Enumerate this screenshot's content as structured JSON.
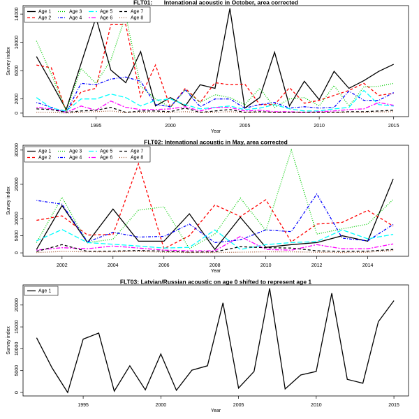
{
  "chart_data": [
    {
      "type": "line",
      "title": "FLT01:       Intenational acoustic in October, area corrected",
      "x_label": "Year",
      "y_label": "Survey index",
      "x": [
        1991,
        1992,
        1993,
        1994,
        1995,
        1996,
        1997,
        1998,
        1999,
        2000,
        2001,
        2002,
        2003,
        2004,
        2005,
        2006,
        2007,
        2008,
        2009,
        2010,
        2011,
        2012,
        2013,
        2014,
        2015
      ],
      "xlim": [
        1990.1,
        2016
      ],
      "xticks": [
        1995,
        2000,
        2005,
        2010,
        2015
      ],
      "ylim": [
        -500,
        15200
      ],
      "yticks": [
        0,
        2000,
        6000,
        10000,
        14000
      ],
      "legend": "topleft",
      "series": [
        {
          "name": "Age 1",
          "color": "#000000",
          "linestyle": "solid",
          "values": [
            8000,
            4300,
            500,
            7000,
            13500,
            6100,
            4300,
            8700,
            1000,
            2200,
            1000,
            4000,
            3500,
            14800,
            700,
            2200,
            8600,
            1000,
            4500,
            1900,
            5900,
            3500,
            4600,
            5900,
            6900
          ]
        },
        {
          "name": "Age 2",
          "color": "#ff0000",
          "linestyle": "dashed",
          "values": [
            6800,
            6400,
            200,
            3000,
            3500,
            12500,
            12500,
            2300,
            6800,
            800,
            3500,
            1500,
            4300,
            4000,
            4100,
            1200,
            1200,
            3600,
            1400,
            1800,
            2500,
            3200,
            4200,
            2500,
            2800
          ]
        },
        {
          "name": "Age 3",
          "color": "#00cd00",
          "linestyle": "dotted",
          "values": [
            10200,
            5500,
            300,
            6300,
            4200,
            7500,
            13800,
            3800,
            2000,
            800,
            3300,
            1500,
            2600,
            2200,
            1200,
            3500,
            800,
            2000,
            2200,
            1000,
            3900,
            1000,
            3700,
            3800,
            4200
          ]
        },
        {
          "name": "Age 4",
          "color": "#0000ff",
          "linestyle": "dashdot",
          "values": [
            1500,
            800,
            100,
            4200,
            4000,
            4800,
            5100,
            4500,
            1200,
            900,
            3300,
            900,
            2000,
            2000,
            700,
            1200,
            1500,
            700,
            900,
            700,
            800,
            3100,
            1800,
            1800,
            2900
          ]
        },
        {
          "name": "Age 5",
          "color": "#00ffff",
          "linestyle": "longdash",
          "values": [
            2200,
            700,
            300,
            2000,
            2000,
            2700,
            2200,
            1000,
            1800,
            2000,
            1200,
            600,
            800,
            1000,
            500,
            700,
            1200,
            600,
            300,
            300,
            600,
            800,
            3200,
            1200,
            1000
          ]
        },
        {
          "name": "Age 6",
          "color": "#ff00ff",
          "linestyle": "twodash",
          "values": [
            800,
            600,
            100,
            1000,
            400,
            1700,
            800,
            500,
            500,
            600,
            900,
            300,
            800,
            800,
            300,
            400,
            200,
            200,
            100,
            200,
            300,
            500,
            600,
            1500,
            1100
          ]
        },
        {
          "name": "Age 7",
          "color": "#000000",
          "linestyle": "dashed",
          "values": [
            600,
            500,
            100,
            300,
            400,
            800,
            100,
            300,
            300,
            200,
            700,
            100,
            300,
            500,
            100,
            200,
            100,
            100,
            100,
            100,
            100,
            200,
            200,
            300,
            400
          ]
        },
        {
          "name": "Age 8",
          "color": "#a0522d",
          "linestyle": "dotted",
          "values": [
            100,
            100,
            0,
            100,
            200,
            300,
            50,
            100,
            100,
            100,
            200,
            50,
            100,
            200,
            50,
            100,
            50,
            50,
            50,
            50,
            50,
            100,
            100,
            150,
            200
          ]
        }
      ]
    },
    {
      "type": "line",
      "title": "FLT02: Intenational acoustic in May, area corrected",
      "x_label": "Year",
      "y_label": "Survey index",
      "x": [
        2001,
        2002,
        2003,
        2004,
        2005,
        2006,
        2007,
        2008,
        2009,
        2010,
        2011,
        2012,
        2013,
        2014,
        2015
      ],
      "xlim": [
        2000.47,
        2015.6
      ],
      "xticks": [
        2002,
        2004,
        2006,
        2008,
        2010,
        2012,
        2014
      ],
      "ylim": [
        -1000,
        31400
      ],
      "yticks": [
        0,
        5000,
        10000,
        20000,
        30000
      ],
      "legend": "topleft",
      "series": [
        {
          "name": "Age 1",
          "color": "#000000",
          "linestyle": "solid",
          "values": [
            1000,
            13800,
            3000,
            12800,
            3400,
            3400,
            11400,
            1000,
            10400,
            1600,
            2400,
            3000,
            5000,
            3400,
            21600
          ]
        },
        {
          "name": "Age 2",
          "color": "#ff0000",
          "linestyle": "dashed",
          "values": [
            9500,
            10800,
            5200,
            5400,
            26000,
            1200,
            5000,
            14000,
            10600,
            15500,
            3200,
            8400,
            8900,
            12400,
            7800
          ]
        },
        {
          "name": "Age 3",
          "color": "#00cd00",
          "linestyle": "dotted",
          "values": [
            3000,
            16200,
            3000,
            4000,
            12500,
            13400,
            1200,
            5500,
            16000,
            6500,
            30000,
            5500,
            7000,
            8400,
            15600
          ]
        },
        {
          "name": "Age 4",
          "color": "#0000ff",
          "linestyle": "dashdot",
          "values": [
            15300,
            14200,
            3200,
            6000,
            4600,
            4800,
            8400,
            3000,
            3800,
            6700,
            6200,
            17200,
            4300,
            3500,
            8300
          ]
        },
        {
          "name": "Age 5",
          "color": "#00ffff",
          "linestyle": "longdash",
          "values": [
            3500,
            6800,
            3000,
            2500,
            2000,
            1400,
            1600,
            6700,
            1000,
            2400,
            3000,
            3300,
            6700,
            4100,
            5400
          ]
        },
        {
          "name": "Age 6",
          "color": "#ff00ff",
          "linestyle": "twodash",
          "values": [
            800,
            1500,
            1200,
            2000,
            1400,
            800,
            600,
            600,
            4800,
            1000,
            800,
            2400,
            1200,
            1200,
            2600
          ]
        },
        {
          "name": "Age 7",
          "color": "#000000",
          "linestyle": "dashed",
          "values": [
            400,
            2400,
            400,
            500,
            700,
            500,
            200,
            300,
            1800,
            1500,
            1400,
            600,
            400,
            500,
            1000
          ]
        },
        {
          "name": "Age 8",
          "color": "#a0522d",
          "linestyle": "dotted",
          "values": [
            100,
            400,
            300,
            300,
            400,
            200,
            100,
            100,
            200,
            300,
            300,
            200,
            100,
            200,
            700
          ]
        }
      ]
    },
    {
      "type": "line",
      "title": "FLT03: Latvian/Russian acoustic on age 0 shifted to represent age 1",
      "x_label": "Year",
      "y_label": "Survey index",
      "x": [
        1992,
        1993,
        1994,
        1995,
        1996,
        1997,
        1998,
        1999,
        2000,
        2001,
        2002,
        2003,
        2004,
        2005,
        2006,
        2007,
        2008,
        2009,
        2010,
        2011,
        2012,
        2013,
        2014,
        2015
      ],
      "xlim": [
        1991.13,
        2015.94
      ],
      "xticks": [
        1995,
        2000,
        2005,
        2010,
        2015
      ],
      "ylim": [
        -800,
        24600
      ],
      "yticks": [
        0,
        5000,
        10000,
        15000,
        20000
      ],
      "legend": "topleft",
      "series": [
        {
          "name": "Age 1",
          "color": "#000000",
          "linestyle": "solid",
          "values": [
            12500,
            5600,
            0,
            12200,
            13600,
            300,
            6100,
            600,
            8800,
            500,
            5100,
            6100,
            20500,
            1000,
            4800,
            23800,
            800,
            4000,
            4800,
            22700,
            3000,
            2100,
            16200,
            21000
          ]
        }
      ]
    }
  ]
}
